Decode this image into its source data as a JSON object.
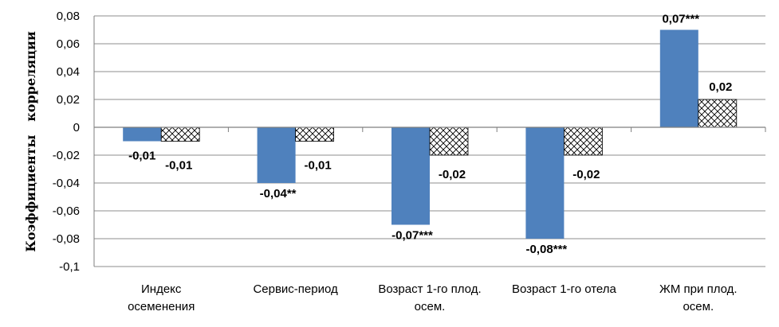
{
  "chart_data": {
    "type": "bar",
    "title": "",
    "xlabel": "",
    "ylabel": "Коэффициенты   корреляции",
    "ylim": [
      -0.1,
      0.08
    ],
    "yticks": [
      0.08,
      0.06,
      0.04,
      0.02,
      0,
      -0.02,
      -0.04,
      -0.06,
      -0.08,
      -0.1
    ],
    "ytick_labels": [
      "0,08",
      "0,06",
      "0,04",
      "0,02",
      "0",
      "-0,02",
      "-0,04",
      "-0,06",
      "-0,08",
      "-0,1"
    ],
    "grid": true,
    "legend": "none",
    "categories": [
      [
        "Индекс",
        "осеменения"
      ],
      [
        "Сервис-период"
      ],
      [
        "Возраст 1-го плод.",
        "осем."
      ],
      [
        "Возраст 1-го отела"
      ],
      [
        "ЖМ при плод.",
        "осем."
      ]
    ],
    "series": [
      {
        "style": "solid",
        "color": "#4f81bd",
        "values": [
          -0.01,
          -0.04,
          -0.07,
          -0.08,
          0.07
        ],
        "labels": [
          "-0,01",
          "-0,04**",
          "-0,07***",
          "-0,08***",
          "0,07***"
        ]
      },
      {
        "style": "crosshatch",
        "color": "#ffffff",
        "values": [
          -0.01,
          -0.01,
          -0.02,
          -0.02,
          0.02
        ],
        "labels": [
          "-0,01",
          "-0,01",
          "-0,02",
          "-0,02",
          "0,02"
        ]
      }
    ]
  }
}
